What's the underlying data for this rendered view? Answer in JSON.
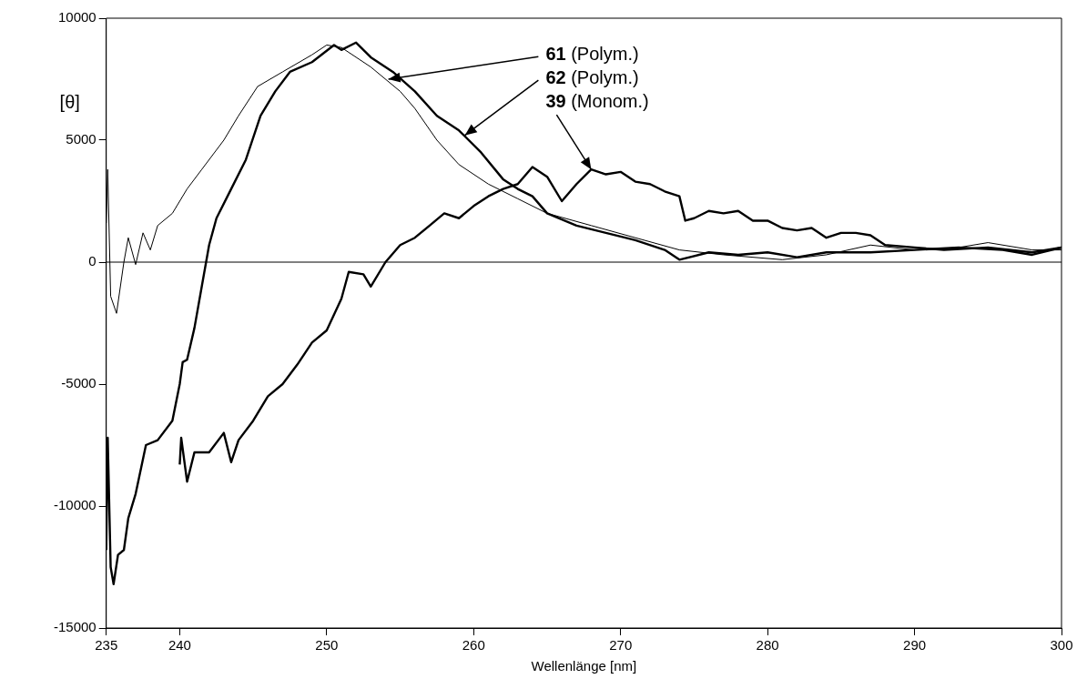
{
  "chart_data": {
    "type": "line",
    "xlabel": "Wellenlänge [nm]",
    "ylabel": "[θ]",
    "xlim": [
      235,
      300
    ],
    "xticks": [
      235,
      240,
      250,
      260,
      270,
      280,
      290,
      300
    ],
    "ylim": [
      -15000,
      10000
    ],
    "yticks": [
      -15000,
      -10000,
      -5000,
      0,
      5000,
      10000
    ],
    "grid": false,
    "legend": false,
    "marker": "none",
    "line_style": "solid",
    "ref_lines": [
      {
        "axis": "y",
        "value": 0,
        "color": "#000000"
      }
    ],
    "annotations": [
      {
        "text": "61 (Polym.)",
        "x": 254.2,
        "y": 7500
      },
      {
        "text": "62 (Polym.)",
        "x": 259.4,
        "y": 5200
      },
      {
        "text": "39 (Monom.)",
        "x": 268,
        "y": 3800
      }
    ],
    "series": [
      {
        "color": "#000000",
        "x": [
          235,
          235.1,
          235.3,
          235.7,
          236.2,
          236.5,
          237,
          237.5,
          238,
          238.5,
          239.5,
          240.5,
          241.5,
          243,
          244,
          245.3,
          247,
          249,
          250,
          251,
          253,
          255,
          256,
          257.5,
          259,
          261,
          263,
          265,
          268,
          271,
          274,
          277,
          281,
          284,
          287,
          290,
          293,
          295,
          298,
          300
        ],
        "values": [
          1600,
          3800,
          -1400,
          -2100,
          0,
          1000,
          -100,
          1200,
          500,
          1500,
          2000,
          3000,
          3800,
          5000,
          6000,
          7200,
          7800,
          8500,
          8900,
          8800,
          8000,
          7000,
          6300,
          5000,
          4000,
          3200,
          2600,
          2000,
          1500,
          1000,
          500,
          300,
          100,
          300,
          700,
          500,
          600,
          800,
          500,
          500
        ]
      },
      {
        "color": "#000000",
        "x": [
          235,
          235.1,
          235.3,
          235.5,
          235.8,
          236.2,
          236.5,
          237,
          237.7,
          238.5,
          239.5,
          240,
          240.2,
          240.5,
          241,
          241.5,
          242,
          242.5,
          243.5,
          244.5,
          245.5,
          246.5,
          247.5,
          249,
          250.5,
          251,
          252,
          253,
          254.5,
          256,
          257.5,
          259,
          260.5,
          262,
          263,
          264,
          265,
          267,
          269,
          271,
          273,
          274,
          276,
          278,
          280,
          282,
          284,
          287,
          290,
          293,
          296,
          298,
          300
        ],
        "values": [
          -11800,
          -7200,
          -12500,
          -13200,
          -12000,
          -11800,
          -10500,
          -9500,
          -7500,
          -7300,
          -6500,
          -5000,
          -4100,
          -4000,
          -2700,
          -1000,
          700,
          1800,
          3000,
          4200,
          6000,
          7000,
          7800,
          8200,
          8900,
          8700,
          9000,
          8400,
          7800,
          7000,
          6000,
          5400,
          4500,
          3400,
          3000,
          2700,
          2000,
          1500,
          1200,
          900,
          500,
          100,
          400,
          300,
          400,
          200,
          400,
          400,
          500,
          600,
          500,
          300,
          600
        ]
      },
      {
        "color": "#000000",
        "x": [
          240,
          240.1,
          240.5,
          241,
          242,
          243,
          243.5,
          244,
          245,
          246,
          247,
          248,
          249,
          250,
          251,
          251.5,
          252.5,
          253,
          254,
          255,
          256,
          257,
          258,
          259,
          260,
          261,
          262,
          263,
          264,
          265,
          266,
          267,
          268,
          269,
          270,
          271,
          272,
          273,
          274,
          274.4,
          275,
          276,
          277,
          278,
          279,
          280,
          281,
          282,
          283,
          284,
          285,
          286,
          287,
          288,
          290,
          292,
          295,
          298,
          300
        ],
        "values": [
          -8300,
          -7200,
          -9000,
          -7800,
          -7800,
          -7000,
          -8200,
          -7300,
          -6500,
          -5500,
          -5000,
          -4200,
          -3300,
          -2800,
          -1500,
          -400,
          -500,
          -1000,
          0,
          700,
          1000,
          1500,
          2000,
          1800,
          2300,
          2700,
          3000,
          3200,
          3900,
          3500,
          2500,
          3200,
          3800,
          3600,
          3700,
          3300,
          3200,
          2900,
          2700,
          1700,
          1800,
          2100,
          2000,
          2100,
          1700,
          1700,
          1400,
          1300,
          1400,
          1000,
          1200,
          1200,
          1100,
          700,
          600,
          500,
          600,
          400,
          600
        ]
      }
    ]
  }
}
